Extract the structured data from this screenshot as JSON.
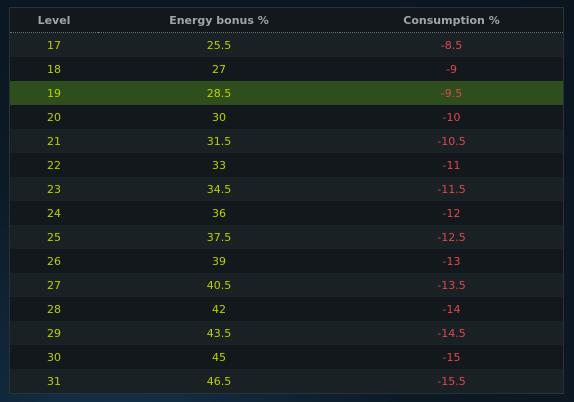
{
  "table": {
    "headers": {
      "level": "Level",
      "energy_bonus": "Energy bonus %",
      "consumption": "Consumption %"
    },
    "highlighted_level": "19",
    "rows": [
      {
        "level": "17",
        "bonus": "25.5",
        "consumption": "-8.5"
      },
      {
        "level": "18",
        "bonus": "27",
        "consumption": "-9"
      },
      {
        "level": "19",
        "bonus": "28.5",
        "consumption": "-9.5"
      },
      {
        "level": "20",
        "bonus": "30",
        "consumption": "-10"
      },
      {
        "level": "21",
        "bonus": "31.5",
        "consumption": "-10.5"
      },
      {
        "level": "22",
        "bonus": "33",
        "consumption": "-11"
      },
      {
        "level": "23",
        "bonus": "34.5",
        "consumption": "-11.5"
      },
      {
        "level": "24",
        "bonus": "36",
        "consumption": "-12"
      },
      {
        "level": "25",
        "bonus": "37.5",
        "consumption": "-12.5"
      },
      {
        "level": "26",
        "bonus": "39",
        "consumption": "-13"
      },
      {
        "level": "27",
        "bonus": "40.5",
        "consumption": "-13.5"
      },
      {
        "level": "28",
        "bonus": "42",
        "consumption": "-14"
      },
      {
        "level": "29",
        "bonus": "43.5",
        "consumption": "-14.5"
      },
      {
        "level": "30",
        "bonus": "45",
        "consumption": "-15"
      },
      {
        "level": "31",
        "bonus": "46.5",
        "consumption": "-15.5"
      }
    ]
  },
  "colors": {
    "value_text": "#b9d000",
    "negative_text": "#e0474c",
    "highlight_row": "#2e4e1e"
  }
}
